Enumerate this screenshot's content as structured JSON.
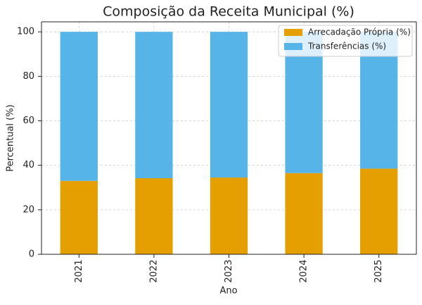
{
  "chart_data": {
    "type": "stacked_bar",
    "title": "Composição da Receita Municipal (%)",
    "x_label": "Ano",
    "y_label": "Percentual (%)",
    "categories": [
      "2021",
      "2022",
      "2023",
      "2024",
      "2025"
    ],
    "series": [
      {
        "name": "Arrecadação Própria (%)",
        "color": "#E69F00",
        "values": [
          33,
          34.2,
          34.5,
          36.5,
          38.5
        ]
      },
      {
        "name": "Transferências (%)",
        "color": "#56B4E9",
        "values": [
          67,
          65.8,
          65.5,
          63.5,
          61.5
        ]
      }
    ],
    "ylim": [
      0,
      104.5
    ],
    "yticks": [
      0,
      20,
      40,
      60,
      80,
      100
    ],
    "grid": true,
    "legend": "upper right"
  }
}
